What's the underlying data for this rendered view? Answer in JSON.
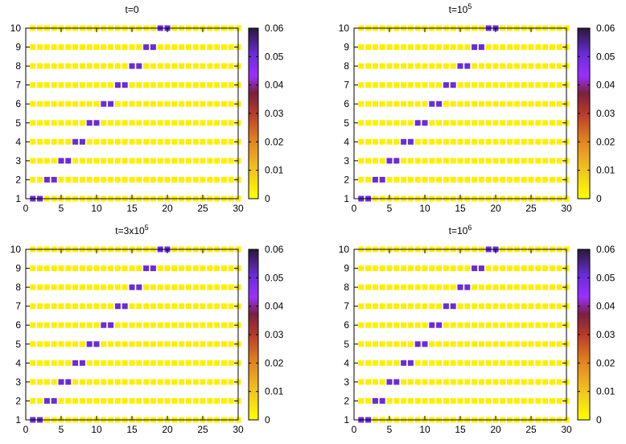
{
  "chart_data": [
    {
      "type": "heatmap",
      "title": "t=0",
      "title_parts": [
        {
          "text": "t=0",
          "sup": false
        }
      ],
      "xlabel": "",
      "ylabel": "",
      "xlim": [
        0,
        30
      ],
      "ylim": [
        1,
        10
      ],
      "x_ticks": [
        "0",
        "5",
        "10",
        "15",
        "20",
        "25",
        "30"
      ],
      "y_ticks": [
        "1",
        "2",
        "3",
        "4",
        "5",
        "6",
        "7",
        "8",
        "9",
        "10"
      ],
      "x": [
        1,
        2,
        3,
        4,
        5,
        6,
        7,
        8,
        9,
        10,
        11,
        12,
        13,
        14,
        15,
        16,
        17,
        18,
        19,
        20,
        21,
        22,
        23,
        24,
        25,
        26,
        27,
        28,
        29,
        30
      ],
      "y": [
        1,
        2,
        3,
        4,
        5,
        6,
        7,
        8,
        9,
        10
      ],
      "baseline_value": 0,
      "peaks": [
        {
          "y": 1,
          "x": [
            1,
            2
          ],
          "value": 0.05
        },
        {
          "y": 2,
          "x": [
            3,
            4
          ],
          "value": 0.05
        },
        {
          "y": 3,
          "x": [
            5,
            6
          ],
          "value": 0.05
        },
        {
          "y": 4,
          "x": [
            7,
            8
          ],
          "value": 0.05
        },
        {
          "y": 5,
          "x": [
            9,
            10
          ],
          "value": 0.05
        },
        {
          "y": 6,
          "x": [
            11,
            12
          ],
          "value": 0.05
        },
        {
          "y": 7,
          "x": [
            13,
            14
          ],
          "value": 0.05
        },
        {
          "y": 8,
          "x": [
            15,
            16
          ],
          "value": 0.05
        },
        {
          "y": 9,
          "x": [
            17,
            18
          ],
          "value": 0.05
        },
        {
          "y": 10,
          "x": [
            19,
            20
          ],
          "value": 0.05
        }
      ],
      "colorbar": {
        "min": 0,
        "max": 0.06,
        "ticks": [
          "0",
          "0.01",
          "0.02",
          "0.03",
          "0.04",
          "0.05",
          "0.06"
        ]
      }
    },
    {
      "type": "heatmap",
      "title": "t=10^5",
      "title_parts": [
        {
          "text": "t=10",
          "sup": false
        },
        {
          "text": "5",
          "sup": true
        }
      ],
      "xlabel": "",
      "ylabel": "",
      "xlim": [
        0,
        30
      ],
      "ylim": [
        1,
        10
      ],
      "x_ticks": [
        "0",
        "5",
        "10",
        "15",
        "20",
        "25",
        "30"
      ],
      "y_ticks": [
        "1",
        "2",
        "3",
        "4",
        "5",
        "6",
        "7",
        "8",
        "9",
        "10"
      ],
      "x": [
        1,
        2,
        3,
        4,
        5,
        6,
        7,
        8,
        9,
        10,
        11,
        12,
        13,
        14,
        15,
        16,
        17,
        18,
        19,
        20,
        21,
        22,
        23,
        24,
        25,
        26,
        27,
        28,
        29,
        30
      ],
      "y": [
        1,
        2,
        3,
        4,
        5,
        6,
        7,
        8,
        9,
        10
      ],
      "baseline_value": 0,
      "peaks": [
        {
          "y": 1,
          "x": [
            1,
            2
          ],
          "value": 0.05
        },
        {
          "y": 2,
          "x": [
            3,
            4
          ],
          "value": 0.05
        },
        {
          "y": 3,
          "x": [
            5,
            6
          ],
          "value": 0.05
        },
        {
          "y": 4,
          "x": [
            7,
            8
          ],
          "value": 0.05
        },
        {
          "y": 5,
          "x": [
            9,
            10
          ],
          "value": 0.05
        },
        {
          "y": 6,
          "x": [
            11,
            12
          ],
          "value": 0.05
        },
        {
          "y": 7,
          "x": [
            13,
            14
          ],
          "value": 0.05
        },
        {
          "y": 8,
          "x": [
            15,
            16
          ],
          "value": 0.05
        },
        {
          "y": 9,
          "x": [
            17,
            18
          ],
          "value": 0.05
        },
        {
          "y": 10,
          "x": [
            19,
            20
          ],
          "value": 0.05
        }
      ],
      "colorbar": {
        "min": 0,
        "max": 0.06,
        "ticks": [
          "0",
          "0.01",
          "0.02",
          "0.03",
          "0.04",
          "0.05",
          "0.06"
        ]
      }
    },
    {
      "type": "heatmap",
      "title": "t=3x10^5",
      "title_parts": [
        {
          "text": "t=3x10",
          "sup": false
        },
        {
          "text": "5",
          "sup": true
        }
      ],
      "xlabel": "",
      "ylabel": "",
      "xlim": [
        0,
        30
      ],
      "ylim": [
        1,
        10
      ],
      "x_ticks": [
        "0",
        "5",
        "10",
        "15",
        "20",
        "25",
        "30"
      ],
      "y_ticks": [
        "1",
        "2",
        "3",
        "4",
        "5",
        "6",
        "7",
        "8",
        "9",
        "10"
      ],
      "x": [
        1,
        2,
        3,
        4,
        5,
        6,
        7,
        8,
        9,
        10,
        11,
        12,
        13,
        14,
        15,
        16,
        17,
        18,
        19,
        20,
        21,
        22,
        23,
        24,
        25,
        26,
        27,
        28,
        29,
        30
      ],
      "y": [
        1,
        2,
        3,
        4,
        5,
        6,
        7,
        8,
        9,
        10
      ],
      "baseline_value": 0,
      "peaks": [
        {
          "y": 1,
          "x": [
            1,
            2
          ],
          "value": 0.05
        },
        {
          "y": 2,
          "x": [
            3,
            4
          ],
          "value": 0.05
        },
        {
          "y": 3,
          "x": [
            5,
            6
          ],
          "value": 0.05
        },
        {
          "y": 4,
          "x": [
            7,
            8
          ],
          "value": 0.05
        },
        {
          "y": 5,
          "x": [
            9,
            10
          ],
          "value": 0.05
        },
        {
          "y": 6,
          "x": [
            11,
            12
          ],
          "value": 0.05
        },
        {
          "y": 7,
          "x": [
            13,
            14
          ],
          "value": 0.05
        },
        {
          "y": 8,
          "x": [
            15,
            16
          ],
          "value": 0.05
        },
        {
          "y": 9,
          "x": [
            17,
            18
          ],
          "value": 0.05
        },
        {
          "y": 10,
          "x": [
            19,
            20
          ],
          "value": 0.05
        }
      ],
      "colorbar": {
        "min": 0,
        "max": 0.06,
        "ticks": [
          "0",
          "0.01",
          "0.02",
          "0.03",
          "0.04",
          "0.05",
          "0.06"
        ]
      }
    },
    {
      "type": "heatmap",
      "title": "t=10^6",
      "title_parts": [
        {
          "text": "t=10",
          "sup": false
        },
        {
          "text": "6",
          "sup": true
        }
      ],
      "xlabel": "",
      "ylabel": "",
      "xlim": [
        0,
        30
      ],
      "ylim": [
        1,
        10
      ],
      "x_ticks": [
        "0",
        "5",
        "10",
        "15",
        "20",
        "25",
        "30"
      ],
      "y_ticks": [
        "1",
        "2",
        "3",
        "4",
        "5",
        "6",
        "7",
        "8",
        "9",
        "10"
      ],
      "x": [
        1,
        2,
        3,
        4,
        5,
        6,
        7,
        8,
        9,
        10,
        11,
        12,
        13,
        14,
        15,
        16,
        17,
        18,
        19,
        20,
        21,
        22,
        23,
        24,
        25,
        26,
        27,
        28,
        29,
        30
      ],
      "y": [
        1,
        2,
        3,
        4,
        5,
        6,
        7,
        8,
        9,
        10
      ],
      "baseline_value": 0,
      "peaks": [
        {
          "y": 1,
          "x": [
            1,
            2
          ],
          "value": 0.05
        },
        {
          "y": 2,
          "x": [
            3,
            4
          ],
          "value": 0.05
        },
        {
          "y": 3,
          "x": [
            5,
            6
          ],
          "value": 0.05
        },
        {
          "y": 4,
          "x": [
            7,
            8
          ],
          "value": 0.05
        },
        {
          "y": 5,
          "x": [
            9,
            10
          ],
          "value": 0.05
        },
        {
          "y": 6,
          "x": [
            11,
            12
          ],
          "value": 0.05
        },
        {
          "y": 7,
          "x": [
            13,
            14
          ],
          "value": 0.05
        },
        {
          "y": 8,
          "x": [
            15,
            16
          ],
          "value": 0.05
        },
        {
          "y": 9,
          "x": [
            17,
            18
          ],
          "value": 0.05
        },
        {
          "y": 10,
          "x": [
            19,
            20
          ],
          "value": 0.05
        }
      ],
      "colorbar": {
        "min": 0,
        "max": 0.06,
        "ticks": [
          "0",
          "0.01",
          "0.02",
          "0.03",
          "0.04",
          "0.05",
          "0.06"
        ]
      }
    }
  ],
  "colors": {
    "low": "#ffee00",
    "mid_low": "#e69c1c",
    "mid": "#b83a2a",
    "mid_high": "#9b2fff",
    "peak": "#6a2cd6",
    "high": "#2b1540",
    "axis": "#000000"
  }
}
